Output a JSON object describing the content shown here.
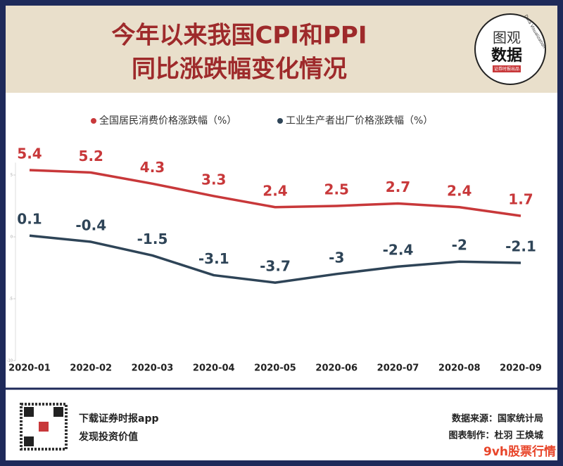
{
  "header": {
    "title_lines": [
      "今年以来我国CPI和PPI",
      "同比涨跌幅变化情况"
    ],
    "logo": {
      "top": "图观",
      "bottom": "数据",
      "ring": "Data Visualization",
      "tag": "证券时报出品"
    }
  },
  "chart_data": {
    "type": "line",
    "categories": [
      "2020-01",
      "2020-02",
      "2020-03",
      "2020-04",
      "2020-05",
      "2020-06",
      "2020-07",
      "2020-08",
      "2020-09"
    ],
    "series": [
      {
        "name": "全国居民消费价格涨跌幅（%）",
        "color": "#c8383a",
        "values": [
          5.4,
          5.2,
          4.3,
          3.3,
          2.4,
          2.5,
          2.7,
          2.4,
          1.7
        ]
      },
      {
        "name": "工业生产者出厂价格涨跌幅（%）",
        "color": "#2e4457",
        "values": [
          0.1,
          -0.4,
          -1.5,
          -3.1,
          -3.7,
          -3,
          -2.4,
          -2,
          -2.1
        ]
      }
    ],
    "ylim": [
      -10,
      6
    ],
    "yticks": [
      -10,
      -5,
      0,
      5
    ]
  },
  "footer": {
    "app_lines": [
      "下载证券时报app",
      "发现投资价值"
    ],
    "source": "数据来源：国家统计局",
    "maker": "图表制作：杜羽 王焕城",
    "watermark": "9vh股票行情"
  }
}
